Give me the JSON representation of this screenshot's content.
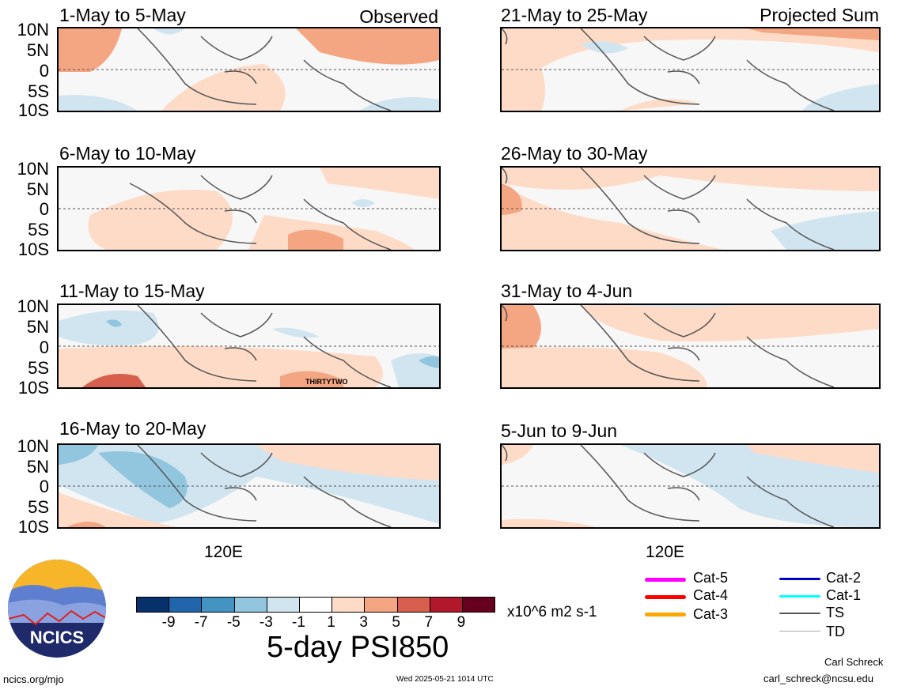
{
  "panels_left": [
    {
      "title": "1-May to 5-May",
      "tag": "Observed"
    },
    {
      "title": "6-May to 10-May",
      "tag": ""
    },
    {
      "title": "11-May to 15-May",
      "tag": ""
    },
    {
      "title": "16-May to 20-May",
      "tag": ""
    }
  ],
  "panels_right": [
    {
      "title": "21-May to 25-May",
      "tag": "Projected Sum"
    },
    {
      "title": "26-May to 30-May",
      "tag": ""
    },
    {
      "title": "31-May to 4-Jun",
      "tag": ""
    },
    {
      "title": "5-Jun to 9-Jun",
      "tag": ""
    }
  ],
  "lat_labels": [
    "10N",
    "5N",
    "0",
    "5S",
    "10S"
  ],
  "lon_label": "120E",
  "annotation": "THIRTYTWO",
  "colorbar": {
    "colors": [
      "#08306b",
      "#2166ac",
      "#4393c3",
      "#92c5de",
      "#d1e5f0",
      "#ffffff",
      "#fddbc7",
      "#f4a582",
      "#d6604d",
      "#b2182b",
      "#67001f"
    ],
    "ticks": [
      "-9",
      "-7",
      "-5",
      "-3",
      "-1",
      "1",
      "3",
      "5",
      "7",
      "9"
    ],
    "units": "x10^6 m2 s-1"
  },
  "title": "5-day PSI850",
  "legend": [
    {
      "label": "Cat-5",
      "color": "#ff00ff"
    },
    {
      "label": "Cat-4",
      "color": "#ff0000"
    },
    {
      "label": "Cat-3",
      "color": "#ffa500"
    },
    {
      "label": "Cat-2",
      "color": "#0000cc"
    },
    {
      "label": "Cat-1",
      "color": "#00ffff"
    },
    {
      "label": "TS",
      "color": "#555555"
    },
    {
      "label": "TD",
      "color": "#aaaaaa"
    }
  ],
  "logo_text": "NCICS",
  "footer": {
    "url": "ncics.org/mjo",
    "timestamp": "Wed 2025-05-21 1014 UTC",
    "author": "Carl Schreck",
    "email": "carl_schreck@ncsu.edu"
  }
}
